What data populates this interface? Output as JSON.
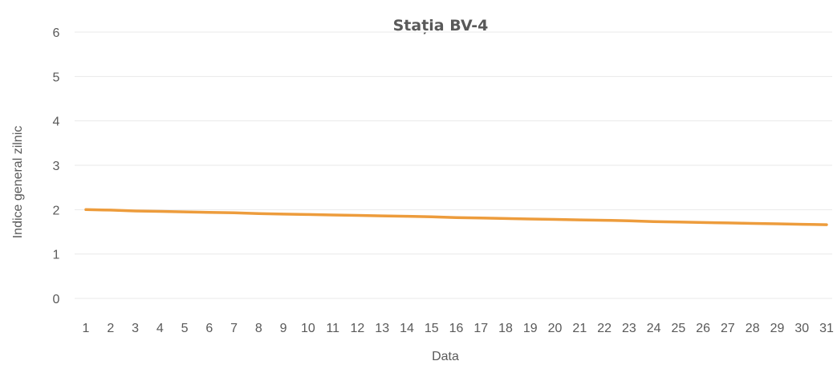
{
  "chart_data": {
    "type": "line",
    "title": "Stația BV-4",
    "xlabel": "Data",
    "ylabel": "Indice general zilnic",
    "x": [
      1,
      2,
      3,
      4,
      5,
      6,
      7,
      8,
      9,
      10,
      11,
      12,
      13,
      14,
      15,
      16,
      17,
      18,
      19,
      20,
      21,
      22,
      23,
      24,
      25,
      26,
      27,
      28,
      29,
      30,
      31
    ],
    "series": [
      {
        "values": [
          2.0,
          1.99,
          1.97,
          1.96,
          1.95,
          1.94,
          1.93,
          1.91,
          1.9,
          1.89,
          1.88,
          1.87,
          1.86,
          1.85,
          1.84,
          1.82,
          1.81,
          1.8,
          1.79,
          1.78,
          1.77,
          1.76,
          1.75,
          1.73,
          1.72,
          1.71,
          1.7,
          1.69,
          1.68,
          1.67,
          1.66
        ],
        "color": "#ED9C3C"
      }
    ],
    "ylim": [
      0,
      6
    ],
    "yticks": [
      0,
      1,
      2,
      3,
      4,
      5,
      6
    ],
    "grid": true,
    "legend": "none"
  }
}
